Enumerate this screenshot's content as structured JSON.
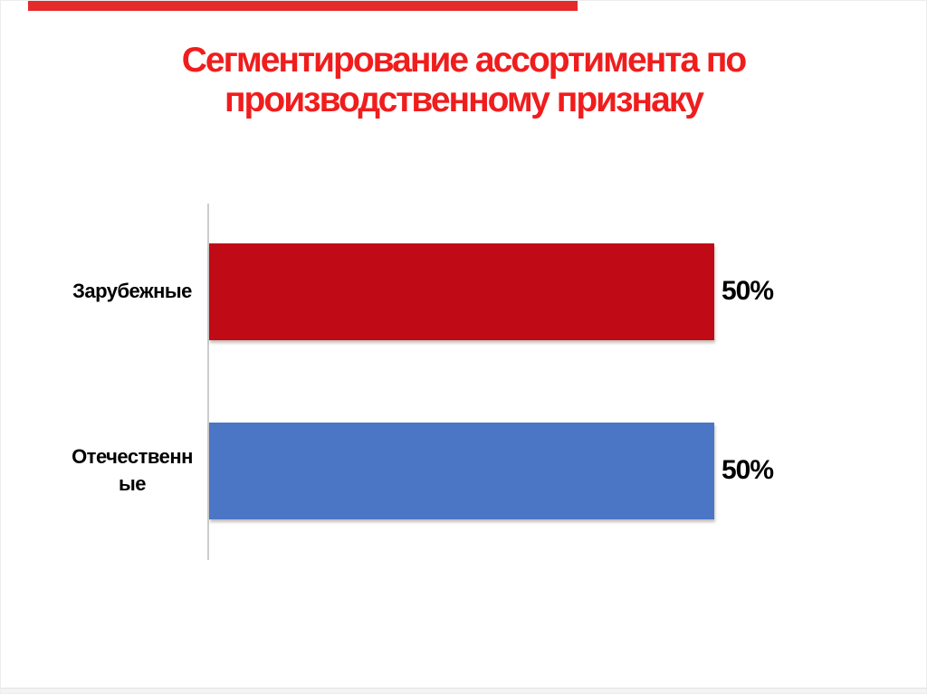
{
  "slide": {
    "title": {
      "line1": "Сегментирование ассортимента по",
      "line2": "производственному признаку",
      "color": "#f01d1d"
    }
  },
  "progress": {
    "fraction": 0.593,
    "color": "#e42a2a"
  },
  "chart_data": {
    "type": "bar",
    "orientation": "horizontal",
    "title": "Сегментирование ассортимента по производственному признаку",
    "categories": [
      "Зарубежные",
      "Отечественные"
    ],
    "values": [
      50,
      50
    ],
    "unit": "%",
    "grid": false,
    "legend": false,
    "axis_line_color": "#cccccc",
    "series": [
      {
        "category": "Зарубежные",
        "display_label": "Зарубежные",
        "value": 50,
        "value_label": "50%",
        "color": "#c00a16"
      },
      {
        "category": "Отечественные",
        "display_label": "Отечественн\nые",
        "value": 50,
        "value_label": "50%",
        "color": "#4b75c5"
      }
    ]
  }
}
